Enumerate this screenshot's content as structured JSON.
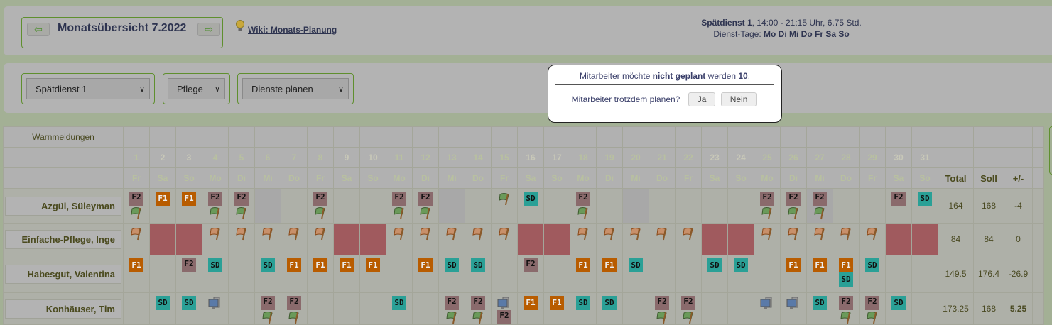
{
  "header": {
    "prev_icon": "arrow-left-icon",
    "next_icon": "arrow-right-icon",
    "prev_label": "⇦",
    "next_label": "⇨",
    "title": "Monatsübersicht 7.2022",
    "wiki_link": "Wiki: Monats-Planung",
    "wiki_icon": "lightbulb-icon",
    "shift_name": "Spätdienst 1",
    "shift_details": ", 14:00 - 21:15 Uhr, 6.75 Std.",
    "days_label": "Dienst-Tage: ",
    "days_value": "Mo Di Mi Do Fr Sa So"
  },
  "filters": {
    "shift": "Spätdienst 1",
    "area": "Pflege",
    "mode": "Dienste planen"
  },
  "table": {
    "warn_label": "Warnmeldungen",
    "total_label": "Total",
    "soll_label": "Soll",
    "diff_label": "+/-",
    "days": [
      1,
      2,
      3,
      4,
      5,
      6,
      7,
      8,
      9,
      10,
      11,
      12,
      13,
      14,
      15,
      16,
      17,
      18,
      19,
      20,
      21,
      22,
      23,
      24,
      25,
      26,
      27,
      28,
      29,
      30,
      31
    ],
    "weekdays": [
      "Fr",
      "Sa",
      "So",
      "Mo",
      "Di",
      "Mi",
      "Do",
      "Fr",
      "Sa",
      "So",
      "Mo",
      "Di",
      "Mi",
      "Do",
      "Fr",
      "Sa",
      "So",
      "Mo",
      "Di",
      "Mi",
      "Do",
      "Fr",
      "Sa",
      "So",
      "Mo",
      "Di",
      "Mi",
      "Do",
      "Fr",
      "Sa",
      "So"
    ],
    "weekend_days": [
      2,
      3,
      9,
      10,
      16,
      17,
      23,
      24,
      30,
      31
    ],
    "rows": [
      {
        "name": "Azgül, Süleyman",
        "total": "164",
        "soll": "168",
        "diff": "-4",
        "diff_negative_highlight": false,
        "cells": [
          [
            "F2",
            "gflag"
          ],
          [
            "F1"
          ],
          [
            "F1"
          ],
          [
            "F2",
            "gflag"
          ],
          [
            "F2",
            "gflag"
          ],
          [
            "grey"
          ],
          [],
          [
            "F2",
            "gflag"
          ],
          [],
          [],
          [
            "F2",
            "gflag"
          ],
          [
            "F2",
            "gflag"
          ],
          [
            "grey"
          ],
          [],
          [
            "gflag"
          ],
          [
            "SD"
          ],
          [],
          [
            "F2",
            "gflag"
          ],
          [],
          [
            "grey"
          ],
          [],
          [],
          [],
          [],
          [
            "F2",
            "gflag"
          ],
          [
            "F2",
            "gflag"
          ],
          [
            "grey",
            "F2",
            "gflag"
          ],
          [],
          [],
          [
            "F2"
          ],
          [
            "SD"
          ]
        ]
      },
      {
        "name": "Einfache-Pflege, Inge",
        "total": "84",
        "soll": "84",
        "diff": "0",
        "diff_negative_highlight": false,
        "cells": [
          [
            "oflag"
          ],
          [
            "red"
          ],
          [
            "red"
          ],
          [
            "oflag"
          ],
          [
            "oflag"
          ],
          [
            "oflag"
          ],
          [
            "oflag"
          ],
          [
            "oflag"
          ],
          [
            "red"
          ],
          [
            "red"
          ],
          [
            "oflag"
          ],
          [
            "oflag"
          ],
          [
            "oflag"
          ],
          [
            "oflag"
          ],
          [
            "oflag"
          ],
          [
            "red"
          ],
          [
            "red"
          ],
          [
            "oflag"
          ],
          [
            "oflag"
          ],
          [
            "oflag"
          ],
          [
            "oflag"
          ],
          [
            "oflag"
          ],
          [
            "red"
          ],
          [
            "red"
          ],
          [
            "oflag"
          ],
          [
            "oflag"
          ],
          [
            "oflag"
          ],
          [
            "oflag"
          ],
          [
            "oflag"
          ],
          [
            "red"
          ],
          [
            "red"
          ]
        ]
      },
      {
        "name": "Habesgut, Valentina",
        "total": "149.5",
        "soll": "176.4",
        "diff": "-26.9",
        "diff_negative_highlight": false,
        "cells": [
          [
            "F1"
          ],
          [],
          [
            "F2"
          ],
          [
            "SD"
          ],
          [],
          [
            "SD"
          ],
          [
            "F1"
          ],
          [
            "F1"
          ],
          [
            "F1"
          ],
          [
            "F1"
          ],
          [],
          [
            "F1"
          ],
          [
            "SD"
          ],
          [
            "SD"
          ],
          [],
          [
            "F2"
          ],
          [],
          [
            "F1"
          ],
          [
            "F1"
          ],
          [
            "SD"
          ],
          [],
          [],
          [
            "SD"
          ],
          [
            "SD"
          ],
          [],
          [
            "F1"
          ],
          [
            "F1"
          ],
          [
            "F1",
            "SD"
          ],
          [
            "SD"
          ],
          [],
          []
        ]
      },
      {
        "name": "Konhäuser, Tim",
        "total": "173.25",
        "soll": "168",
        "diff": "5.25",
        "diff_negative_highlight": true,
        "cells": [
          [],
          [
            "SD"
          ],
          [
            "SD"
          ],
          [
            "pc"
          ],
          [],
          [
            "F2",
            "gflag"
          ],
          [
            "F2",
            "gflag"
          ],
          [],
          [],
          [],
          [
            "SD"
          ],
          [],
          [
            "F2",
            "gflag"
          ],
          [
            "F2",
            "gflag"
          ],
          [
            "pc",
            "F2"
          ],
          [
            "F1"
          ],
          [
            "F1"
          ],
          [
            "SD"
          ],
          [
            "SD"
          ],
          [],
          [
            "F2",
            "gflag"
          ],
          [
            "F2",
            "gflag"
          ],
          [],
          [],
          [
            "pc"
          ],
          [
            "pc"
          ],
          [
            "SD"
          ],
          [
            "F2",
            "gflag"
          ],
          [
            "F2",
            "gflag"
          ],
          [
            "SD"
          ],
          []
        ]
      }
    ]
  },
  "dialog": {
    "line1_pre": "Mitarbeiter möchte ",
    "line1_bold": "nicht geplant",
    "line2": "werden",
    "count": "10",
    "count_suffix": ".",
    "question": "Mitarbeiter trotzdem planen?",
    "yes": "Ja",
    "no": "Nein"
  },
  "colors": {
    "F1": "#b85c00",
    "F2": "#8a6a6c",
    "SD": "#2aa096",
    "weekday": "#5a8236",
    "weekend": "#3a3d10",
    "blocked": "#a05a5e"
  }
}
